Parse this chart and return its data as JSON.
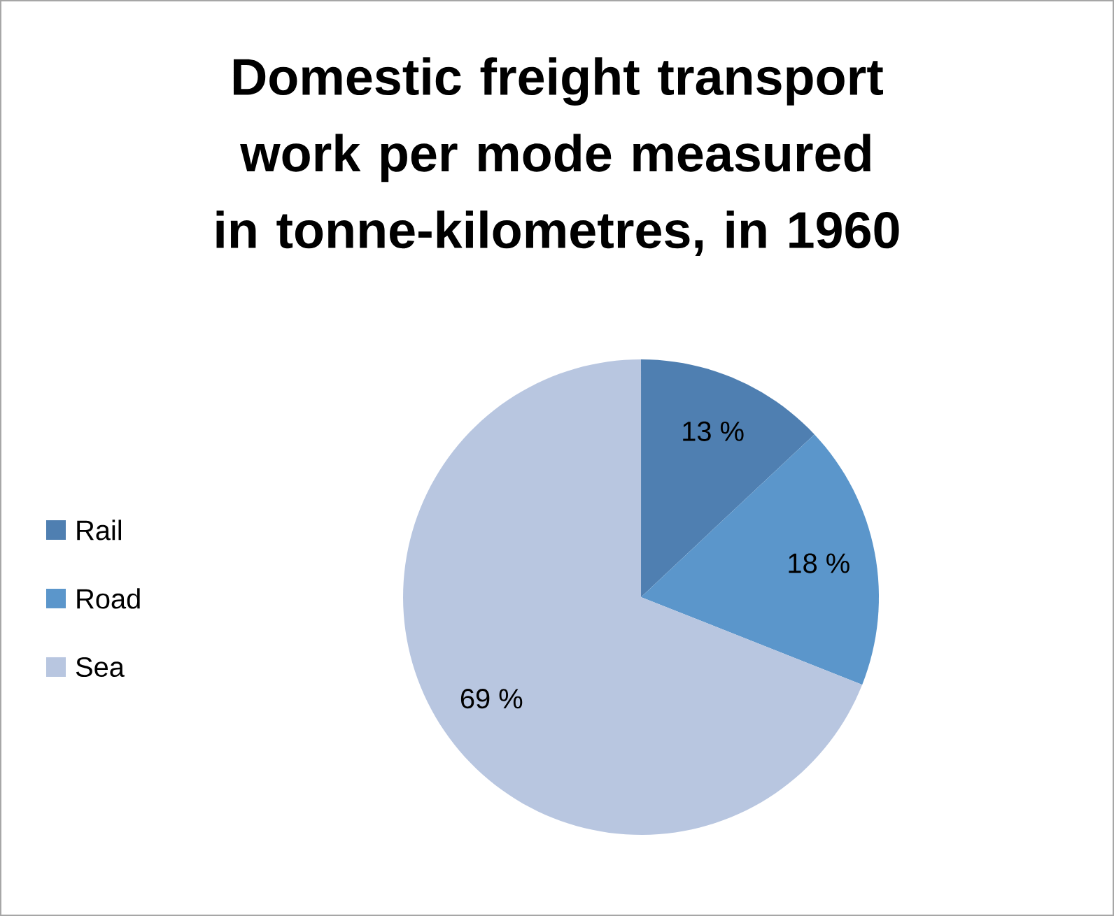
{
  "chart_data": {
    "type": "pie",
    "title": "Domestic freight transport work per mode measured in tonne-kilometres, in 1960",
    "categories": [
      "Rail",
      "Road",
      "Sea"
    ],
    "values": [
      13,
      18,
      69
    ],
    "value_labels": [
      "13 %",
      "18 %",
      "69 %"
    ],
    "colors": [
      "#4f7fb1",
      "#5b96cb",
      "#b8c6e0"
    ],
    "legend": "left"
  }
}
